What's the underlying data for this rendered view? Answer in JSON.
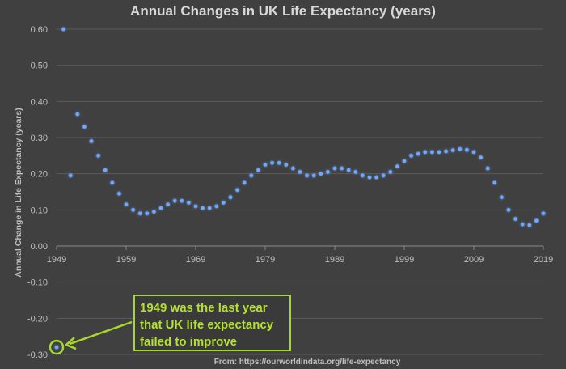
{
  "chart_data": {
    "type": "scatter",
    "title": "Annual Changes in UK Life Expectancy (years)",
    "xlabel": "",
    "ylabel": "Annual Change in Life Expectancy (years)",
    "xlim": [
      1949,
      2019
    ],
    "ylim": [
      -0.3,
      0.6
    ],
    "x_ticks": [
      "1949",
      "1959",
      "1969",
      "1979",
      "1989",
      "1999",
      "2009",
      "2019"
    ],
    "y_ticks": [
      "0.60",
      "0.50",
      "0.40",
      "0.30",
      "0.20",
      "0.10",
      "0.00",
      "-0.10",
      "-0.20",
      "-0.30"
    ],
    "grid": true,
    "x": [
      1949,
      1950,
      1951,
      1952,
      1953,
      1954,
      1955,
      1956,
      1957,
      1958,
      1959,
      1960,
      1961,
      1962,
      1963,
      1964,
      1965,
      1966,
      1967,
      1968,
      1969,
      1970,
      1971,
      1972,
      1973,
      1974,
      1975,
      1976,
      1977,
      1978,
      1979,
      1980,
      1981,
      1982,
      1983,
      1984,
      1985,
      1986,
      1987,
      1988,
      1989,
      1990,
      1991,
      1992,
      1993,
      1994,
      1995,
      1996,
      1997,
      1998,
      1999,
      2000,
      2001,
      2002,
      2003,
      2004,
      2005,
      2006,
      2007,
      2008,
      2009,
      2010,
      2011,
      2012,
      2013,
      2014,
      2015,
      2016,
      2017,
      2018,
      2019
    ],
    "values": [
      -0.28,
      0.6,
      0.195,
      0.365,
      0.33,
      0.29,
      0.25,
      0.21,
      0.175,
      0.145,
      0.115,
      0.1,
      0.09,
      0.09,
      0.095,
      0.105,
      0.115,
      0.125,
      0.125,
      0.12,
      0.11,
      0.105,
      0.105,
      0.11,
      0.12,
      0.135,
      0.155,
      0.175,
      0.195,
      0.21,
      0.225,
      0.23,
      0.23,
      0.225,
      0.215,
      0.205,
      0.195,
      0.195,
      0.2,
      0.205,
      0.215,
      0.215,
      0.21,
      0.205,
      0.195,
      0.19,
      0.19,
      0.195,
      0.205,
      0.22,
      0.235,
      0.25,
      0.255,
      0.26,
      0.26,
      0.26,
      0.262,
      0.265,
      0.268,
      0.266,
      0.26,
      0.245,
      0.215,
      0.175,
      0.135,
      0.1,
      0.075,
      0.06,
      0.058,
      0.07,
      0.09
    ],
    "point_color": "#6fa8ff",
    "highlight": {
      "x": 1949,
      "value": -0.28,
      "color": "#a6d82a"
    },
    "annotation": [
      "1949 was the last year",
      "that UK life expectancy",
      "failed to improve"
    ],
    "annotation_color": "#b6e22e",
    "source": "From: https://ourworldindata.org/life-expectancy"
  }
}
